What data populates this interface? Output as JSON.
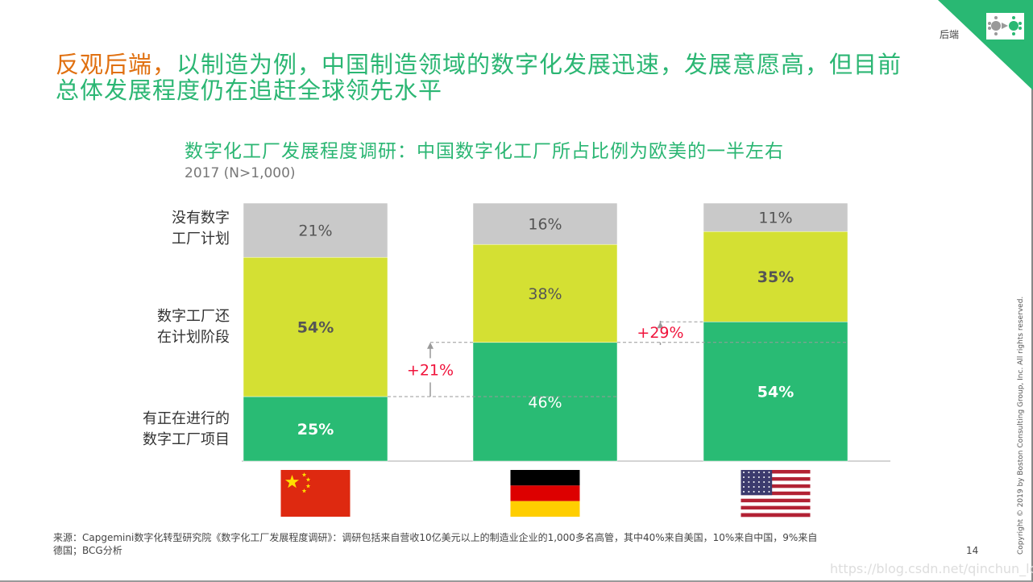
{
  "header": {
    "section": "后端",
    "headline_highlight": "反观后端，",
    "headline_rest": "以制造为例，中国制造领域的数字化发展迅速，发展意愿高，但目前",
    "headline_line2": "总体发展程度仍在追赶全球领先水平"
  },
  "colors": {
    "brand_green": "#29b873",
    "accent_orange": "#e07010",
    "growth_red": "#f0143c"
  },
  "chart_data": {
    "type": "bar",
    "stacked": true,
    "title": "数字化工厂发展程度调研：中国数字化工厂所占比例为欧美的一半左右",
    "subtitle": "2017 (N>1,000)",
    "categories": [
      "china-flag",
      "germany-flag",
      "usa-flag"
    ],
    "series": [
      {
        "name": "有正在进行的数字工厂项目",
        "color": "#29bb74",
        "values": [
          25,
          46,
          54
        ],
        "labels": [
          "25%",
          "46%",
          "54%"
        ],
        "bold": [
          true,
          false,
          true
        ]
      },
      {
        "name": "数字工厂还在计划阶段",
        "color": "#d4e033",
        "values": [
          54,
          38,
          35
        ],
        "labels": [
          "54%",
          "38%",
          "35%"
        ],
        "bold": [
          true,
          false,
          true
        ]
      },
      {
        "name": "没有数字工厂计划",
        "color": "#c9c9c9",
        "values": [
          21,
          16,
          11
        ],
        "labels": [
          "21%",
          "16%",
          "11%"
        ],
        "bold": [
          false,
          false,
          false
        ]
      }
    ],
    "annotations": [
      {
        "from": 0,
        "to": 1,
        "label": "+21%"
      },
      {
        "from": 1,
        "to": 2,
        "label": "+29%"
      }
    ],
    "ylim": [
      0,
      100
    ]
  },
  "row_labels": [
    {
      "line1": "没有数字",
      "line2": "工厂计划"
    },
    {
      "line1": "数字工厂还",
      "line2": "在计划阶段"
    },
    {
      "line1": "有正在进行的",
      "line2": "数字工厂项目"
    }
  ],
  "footer": {
    "source": "来源：Capgemini数字化转型研究院《数字化工厂发展程度调研》：调研包括来自营收10亿美元以上的制造业企业的1,000多名高管，其中40%来自美国，10%来自中国，9%来自德国；BCG分析",
    "page": "14",
    "copyright": "Copyright © 2019 by Boston Consulting Group, Inc. All rights reserved.",
    "watermark": "https://blog.csdn.net/qinchun_long"
  }
}
